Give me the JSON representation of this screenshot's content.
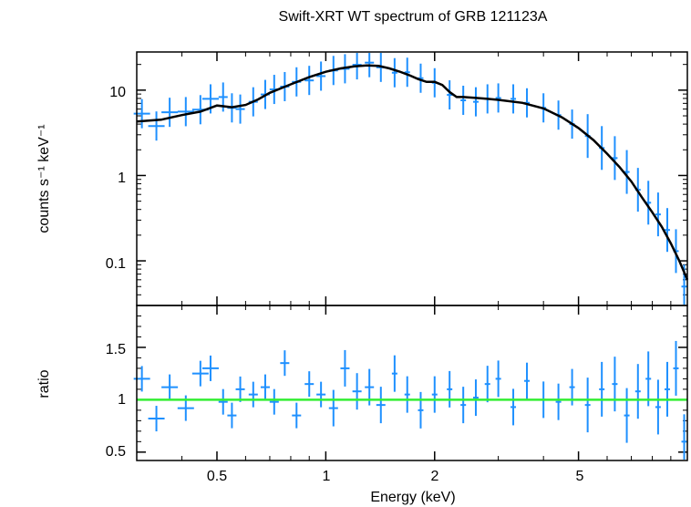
{
  "chart_data": [
    {
      "type": "scatter",
      "title": "Swift-XRT WT spectrum of GRB 121123A",
      "xlabel": "Energy (keV)",
      "ylabel": "counts s⁻¹ keV⁻¹",
      "x_scale": "log",
      "y_scale": "log",
      "xlim": [
        0.3,
        10
      ],
      "ylim": [
        0.03,
        28
      ],
      "x_ticks": [
        "0.5",
        "1",
        "2",
        "5"
      ],
      "x_tick_values": [
        0.5,
        1,
        2,
        5
      ],
      "y_ticks": [
        "0.1",
        "1",
        "10"
      ],
      "y_tick_values": [
        0.1,
        1,
        10
      ],
      "colors": {
        "data": "#1e90ff",
        "model": "#000000"
      },
      "series": [
        {
          "name": "",
          "x": [
            0.31,
            0.34,
            0.37,
            0.41,
            0.45,
            0.48,
            0.52,
            0.55,
            0.58,
            0.63,
            0.68,
            0.72,
            0.77,
            0.83,
            0.9,
            0.97,
            1.05,
            1.13,
            1.22,
            1.32,
            1.42,
            1.55,
            1.68,
            1.83,
            2.0,
            2.2,
            2.4,
            2.6,
            2.8,
            3.0,
            3.3,
            3.6,
            4.0,
            4.4,
            4.8,
            5.3,
            5.8,
            6.3,
            6.8,
            7.3,
            7.8,
            8.3,
            8.8,
            9.3,
            9.8
          ],
          "y": [
            5.3,
            3.8,
            5.5,
            5.6,
            5.9,
            7.9,
            8.3,
            6.2,
            6.0,
            7.3,
            8.9,
            10.2,
            11.0,
            12.5,
            13.0,
            14.6,
            17.0,
            17.8,
            19.8,
            21.0,
            18.5,
            16.0,
            16.2,
            13.8,
            12.2,
            8.8,
            7.6,
            7.3,
            7.9,
            8.1,
            7.9,
            7.1,
            6.2,
            5.1,
            4.0,
            2.9,
            2.1,
            1.6,
            1.1,
            0.68,
            0.48,
            0.35,
            0.23,
            0.13,
            0.05
          ]
        },
        {
          "name": "",
          "x": [
            0.3,
            0.35,
            0.4,
            0.45,
            0.5,
            0.55,
            0.6,
            0.65,
            0.7,
            0.8,
            0.9,
            1.0,
            1.1,
            1.2,
            1.3,
            1.4,
            1.5,
            1.6,
            1.7,
            1.8,
            1.9,
            2.0,
            2.1,
            2.2,
            2.3,
            2.4,
            2.6,
            2.8,
            3.0,
            3.5,
            4.0,
            4.5,
            5.0,
            5.5,
            6.0,
            6.5,
            7.0,
            7.5,
            8.0,
            8.5,
            9.0,
            9.5,
            10.0
          ],
          "y": [
            4.3,
            4.5,
            5.1,
            5.6,
            6.6,
            6.3,
            6.7,
            7.8,
            9.3,
            11.7,
            14.2,
            16.4,
            18.0,
            19.0,
            19.5,
            19.2,
            18.0,
            16.5,
            15.0,
            13.5,
            12.5,
            12.5,
            11.5,
            9.5,
            8.3,
            8.3,
            8.1,
            7.9,
            7.7,
            7.1,
            6.1,
            4.8,
            3.6,
            2.6,
            1.8,
            1.25,
            0.85,
            0.55,
            0.37,
            0.25,
            0.16,
            0.1,
            0.06
          ]
        }
      ]
    },
    {
      "type": "scatter",
      "title": "",
      "xlabel": "Energy (keV)",
      "ylabel": "ratio",
      "x_scale": "log",
      "xlim": [
        0.3,
        10
      ],
      "ylim": [
        0.42,
        1.9
      ],
      "x_ticks": [
        "0.5",
        "1",
        "2",
        "5"
      ],
      "x_tick_values": [
        0.5,
        1,
        2,
        5
      ],
      "y_ticks": [
        "0.5",
        "1",
        "1.5"
      ],
      "y_tick_values": [
        0.5,
        1,
        1.5
      ],
      "reference_line": 1,
      "colors": {
        "data": "#1e90ff",
        "reference": "#33ee33"
      },
      "series": [
        {
          "name": "",
          "x": [
            0.31,
            0.34,
            0.37,
            0.41,
            0.45,
            0.48,
            0.52,
            0.55,
            0.58,
            0.63,
            0.68,
            0.72,
            0.77,
            0.83,
            0.9,
            0.97,
            1.05,
            1.13,
            1.22,
            1.32,
            1.42,
            1.55,
            1.68,
            1.83,
            2.0,
            2.2,
            2.4,
            2.6,
            2.8,
            3.0,
            3.3,
            3.6,
            4.0,
            4.4,
            4.8,
            5.3,
            5.8,
            6.3,
            6.8,
            7.3,
            7.8,
            8.3,
            8.8,
            9.3,
            9.8
          ],
          "y": [
            1.2,
            0.82,
            1.12,
            0.92,
            1.25,
            1.3,
            0.98,
            0.85,
            1.1,
            1.05,
            1.12,
            0.98,
            1.35,
            0.85,
            1.15,
            1.05,
            0.92,
            1.3,
            1.08,
            1.12,
            0.95,
            1.25,
            1.05,
            0.9,
            1.05,
            1.1,
            0.95,
            1.02,
            1.15,
            1.2,
            0.93,
            1.18,
            1.0,
            0.98,
            1.12,
            0.95,
            1.1,
            1.15,
            0.85,
            1.08,
            1.2,
            0.93,
            1.1,
            1.3,
            0.6
          ]
        }
      ]
    }
  ]
}
